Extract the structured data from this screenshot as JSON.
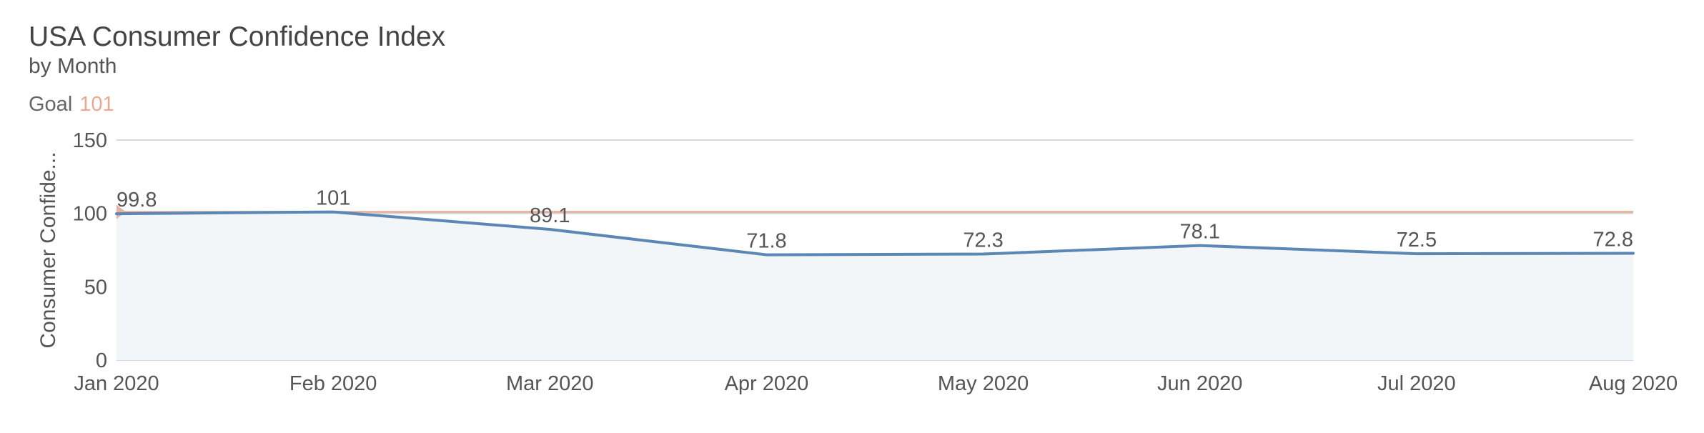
{
  "header": {
    "title": "USA Consumer Confidence Index",
    "subtitle": "by Month",
    "goal_label": "Goal",
    "goal_value": "101"
  },
  "colors": {
    "line": "#5b87b5",
    "area": "#f3f6f9",
    "goal": "#e8b2a0",
    "grid": "#d9d9d9"
  },
  "chart_data": {
    "type": "area",
    "title": "USA Consumer Confidence Index",
    "subtitle": "by Month",
    "xlabel": "",
    "ylabel": "Consumer Confide...",
    "categories": [
      "Jan 2020",
      "Feb 2020",
      "Mar 2020",
      "Apr 2020",
      "May 2020",
      "Jun 2020",
      "Jul 2020",
      "Aug 2020"
    ],
    "series": [
      {
        "name": "Consumer Confidence",
        "values": [
          99.8,
          101,
          89.1,
          71.8,
          72.3,
          78.1,
          72.5,
          72.8
        ]
      }
    ],
    "data_labels": [
      "99.8",
      "101",
      "89.1",
      "71.8",
      "72.3",
      "78.1",
      "72.5",
      "72.8"
    ],
    "goal": {
      "label": "Goal",
      "value": 101
    },
    "yticks": [
      "0",
      "50",
      "100",
      "150"
    ],
    "ylim": [
      0,
      150
    ],
    "grid": true,
    "legend": "none"
  }
}
